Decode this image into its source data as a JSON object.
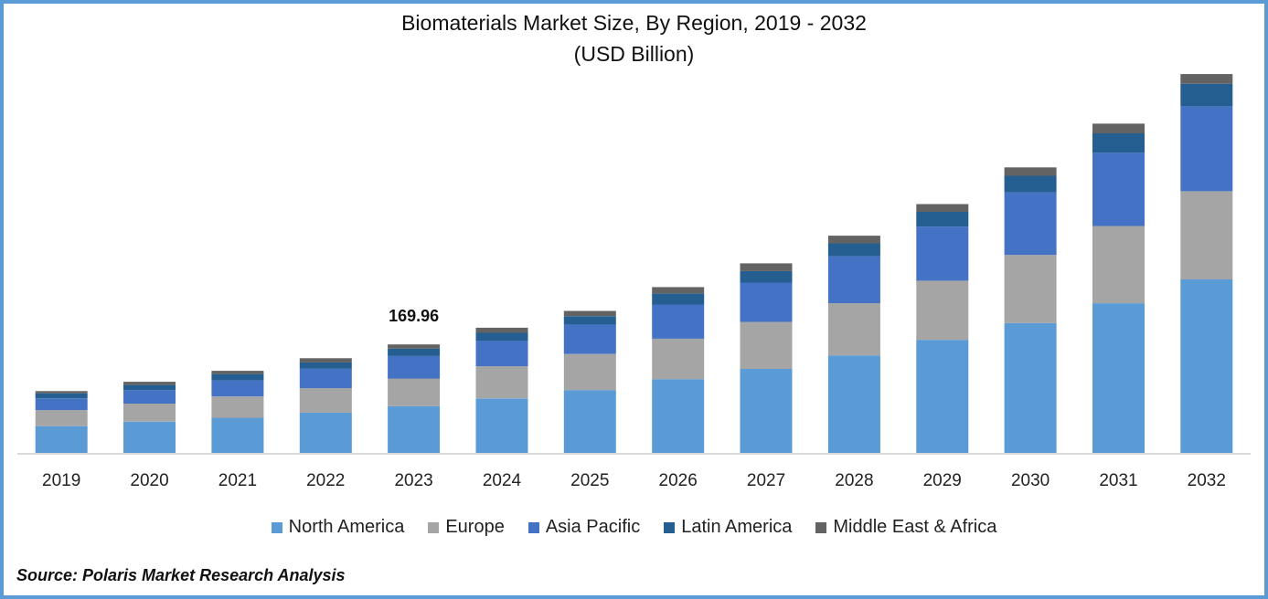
{
  "chart_data": {
    "type": "bar",
    "stacked": true,
    "title": "Biomaterials Market Size, By Region, 2019 - 2032",
    "subtitle": "(USD Billion)",
    "xlabel": "",
    "ylabel": "",
    "categories": [
      "2019",
      "2020",
      "2021",
      "2022",
      "2023",
      "2024",
      "2025",
      "2026",
      "2027",
      "2028",
      "2029",
      "2030",
      "2031",
      "2032"
    ],
    "series": [
      {
        "name": "North America",
        "color": "#5b9bd5",
        "values": [
          43,
          50,
          56,
          64,
          74,
          86,
          99,
          116,
          132,
          153,
          177,
          203,
          234,
          271
        ]
      },
      {
        "name": "Europe",
        "color": "#a5a5a5",
        "values": [
          25,
          28,
          33,
          38,
          43,
          50,
          56,
          63,
          73,
          81,
          92,
          106,
          120,
          137
        ]
      },
      {
        "name": "Asia Pacific",
        "color": "#4472c4",
        "values": [
          18,
          21,
          25,
          30,
          35,
          40,
          46,
          53,
          61,
          73,
          84,
          97,
          114,
          132
        ]
      },
      {
        "name": "Latin America",
        "color": "#255e91",
        "values": [
          8,
          8,
          10,
          10,
          11.5,
          12,
          13,
          17,
          18,
          20,
          23,
          26,
          30,
          35
        ]
      },
      {
        "name": "Middle East & Africa",
        "color": "#636363",
        "values": [
          3.4,
          5,
          5,
          6.5,
          6.46,
          8,
          8,
          10,
          12,
          12,
          12,
          13,
          15,
          15
        ]
      }
    ],
    "annotations": [
      {
        "category": "2023",
        "text": "169.96"
      }
    ],
    "ylim": [
      0,
      620
    ],
    "grid": false,
    "legend": "bottom"
  },
  "source": "Source: Polaris Market Research Analysis",
  "colors": {
    "frame": "#5b9bd5",
    "axis": "#d9d9d9"
  }
}
